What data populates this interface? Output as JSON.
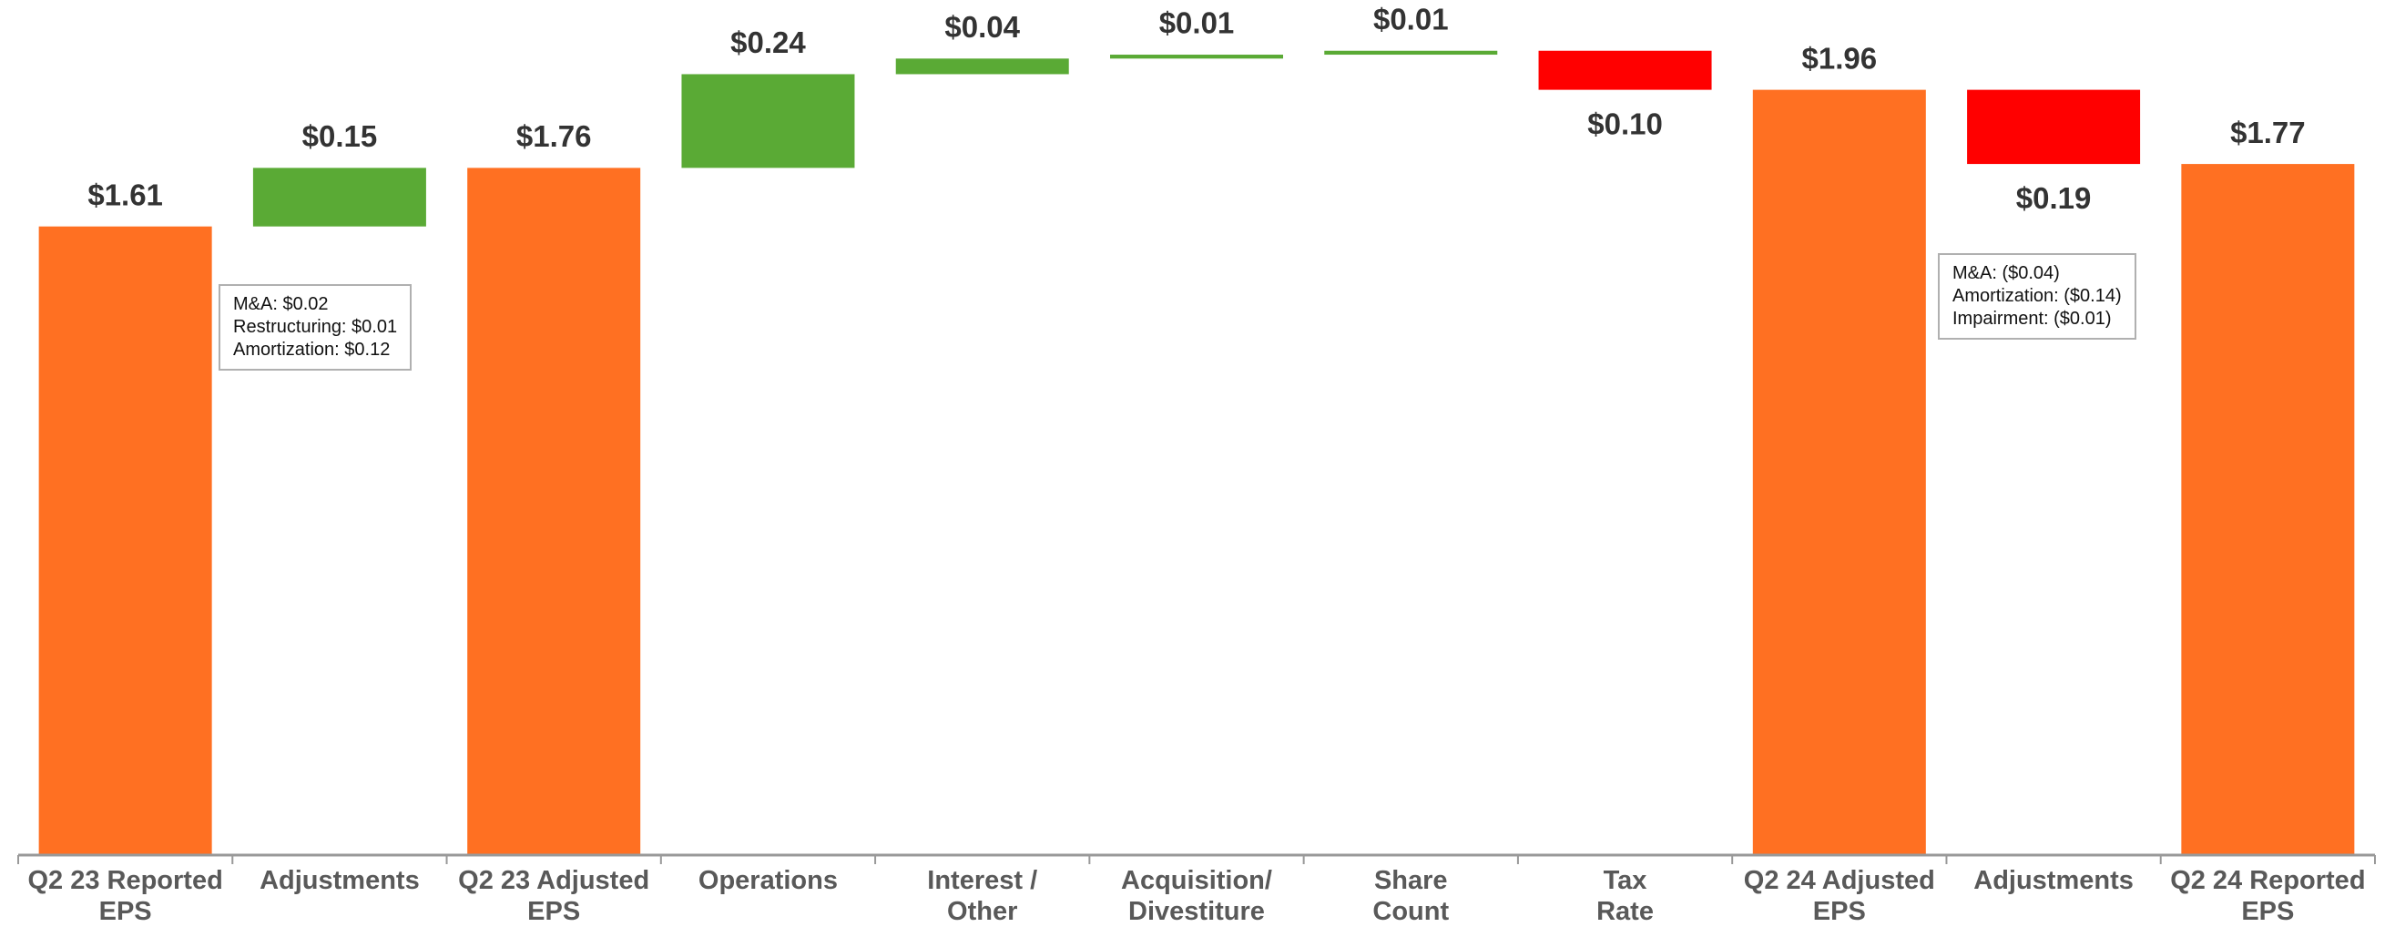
{
  "chart_data": {
    "type": "waterfall",
    "categories": [
      "Q2 23  Reported\nEPS",
      "Adjustments",
      "Q2 23  Adjusted\nEPS",
      "Operations",
      "Interest /\nOther",
      "Acquisition/\nDivestiture",
      "Share\nCount",
      "Tax\nRate",
      "Q2 24  Adjusted\nEPS",
      "Adjustments",
      "Q2 24  Reported\nEPS"
    ],
    "values": [
      1.61,
      0.15,
      1.76,
      0.24,
      0.04,
      0.01,
      0.01,
      -0.1,
      1.96,
      -0.19,
      1.77
    ],
    "value_labels": [
      "$1.61",
      "$0.15",
      "$1.76",
      "$0.24",
      "$0.04",
      "$0.01",
      "$0.01",
      "$0.10",
      "$1.96",
      "$0.19",
      "$1.77"
    ],
    "is_total": [
      true,
      false,
      true,
      false,
      false,
      false,
      false,
      false,
      true,
      false,
      true
    ],
    "colors": {
      "total": "#ff7022",
      "increase": "#5aaa35",
      "decrease": "#ff0000"
    },
    "ylim": [
      0,
      2.19
    ],
    "annotations": [
      {
        "category": 1,
        "lines": [
          "M&A: $0.02",
          "Restructuring: $0.01",
          "Amortization: $0.12"
        ]
      },
      {
        "category": 9,
        "lines": [
          "M&A: ($0.04)",
          "Amortization: ($0.14)",
          "Impairment: ($0.01)"
        ]
      }
    ]
  }
}
